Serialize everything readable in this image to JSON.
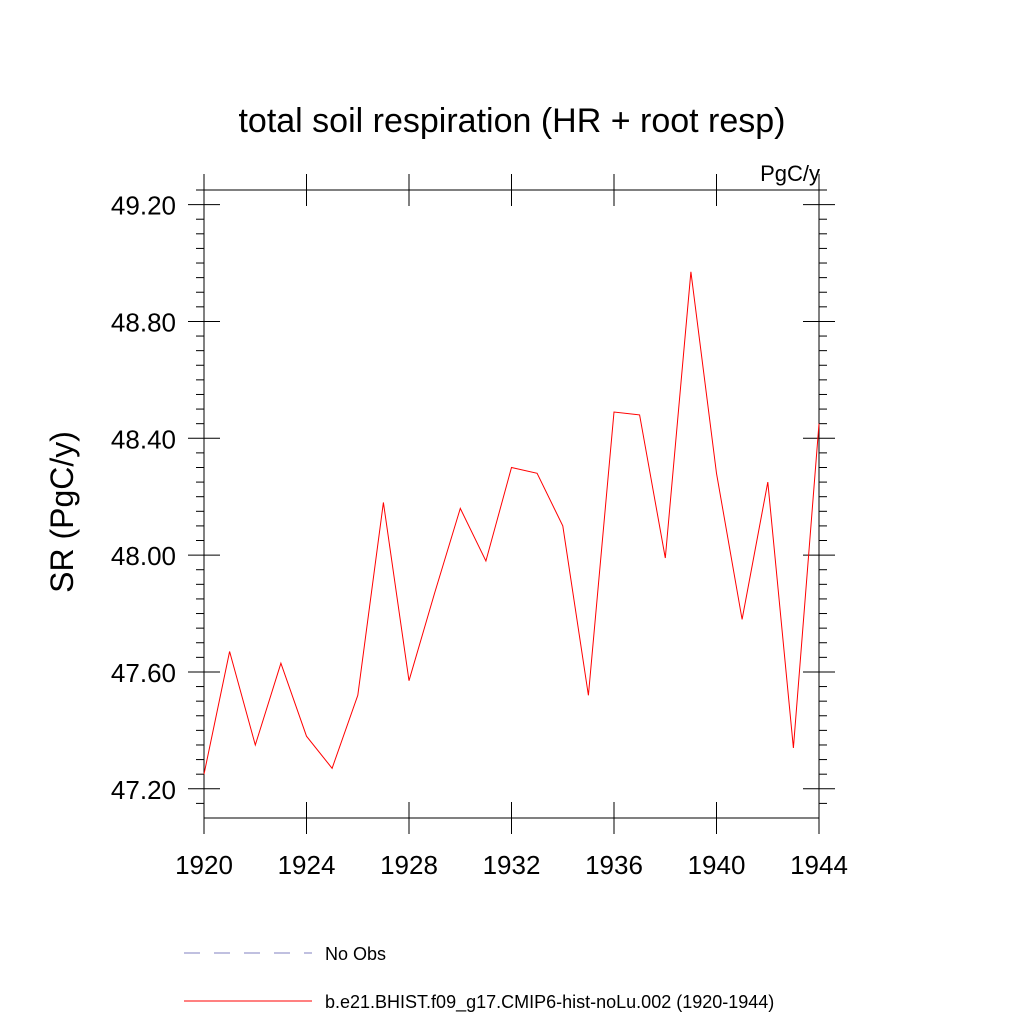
{
  "chart_data": {
    "type": "line",
    "title": "total soil respiration (HR + root resp)",
    "units_label": "PgC/y",
    "ylabel": "SR  (PgC/y)",
    "xlabel": "",
    "xlim": [
      1920,
      1944
    ],
    "ylim": [
      47.1,
      49.25
    ],
    "x_ticks": [
      1920,
      1924,
      1928,
      1932,
      1936,
      1940,
      1944
    ],
    "x_tick_labels": [
      "1920",
      "1924",
      "1928",
      "1932",
      "1936",
      "1940",
      "1944"
    ],
    "y_ticks": [
      47.2,
      47.6,
      48.0,
      48.4,
      48.8,
      49.2
    ],
    "y_tick_labels": [
      "47.20",
      "47.60",
      "48.00",
      "48.40",
      "48.80",
      "49.20"
    ],
    "grid": false,
    "legend_position": "bottom",
    "series": [
      {
        "name": "No Obs",
        "color": "#8080c0",
        "dash": true,
        "x": [],
        "values": []
      },
      {
        "name": "b.e21.BHIST.f09_g17.CMIP6-hist-noLu.002 (1920-1944)",
        "color": "#ff0000",
        "dash": false,
        "x": [
          1920,
          1921,
          1922,
          1923,
          1924,
          1925,
          1926,
          1927,
          1928,
          1929,
          1930,
          1931,
          1932,
          1933,
          1934,
          1935,
          1936,
          1937,
          1938,
          1939,
          1940,
          1941,
          1942,
          1943,
          1944
        ],
        "values": [
          47.25,
          47.67,
          47.35,
          47.63,
          47.38,
          47.27,
          47.52,
          48.18,
          47.57,
          47.87,
          48.16,
          47.98,
          48.3,
          48.28,
          48.1,
          47.52,
          48.49,
          48.48,
          47.99,
          48.97,
          48.28,
          47.78,
          48.25,
          47.34,
          48.45
        ]
      }
    ]
  }
}
